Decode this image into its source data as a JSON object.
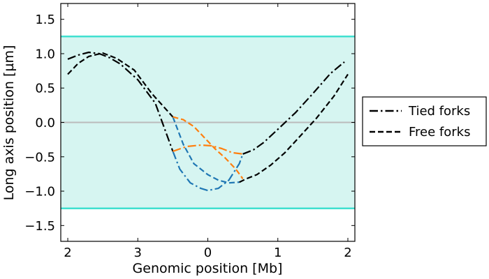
{
  "chart_data": {
    "type": "line",
    "title": "",
    "xlabel": "Genomic position [Mb]",
    "ylabel": "Long axis position [µm]",
    "xlim": [
      -0.1,
      4.1
    ],
    "ylim": [
      -1.73,
      1.73
    ],
    "x_ticks": [
      {
        "pos": 0,
        "label": "2"
      },
      {
        "pos": 1,
        "label": "3"
      },
      {
        "pos": 2,
        "label": "0"
      },
      {
        "pos": 3,
        "label": "1"
      },
      {
        "pos": 4,
        "label": "2"
      }
    ],
    "y_ticks": [
      {
        "value": 1.5,
        "label": "1.5"
      },
      {
        "value": 1.0,
        "label": "1.0"
      },
      {
        "value": 0.5,
        "label": "0.5"
      },
      {
        "value": 0.0,
        "label": "0.0"
      },
      {
        "value": -0.5,
        "label": "−0.5"
      },
      {
        "value": -1.0,
        "label": "−1.0"
      },
      {
        "value": -1.5,
        "label": "−1.5"
      }
    ],
    "band": {
      "ymin": -1.25,
      "ymax": 1.25,
      "fill": "#d6f5f1",
      "edge": "#40e0d0"
    },
    "hline": {
      "y": 0.0,
      "color": "#bbbbbb"
    },
    "legend_position": "outside-right",
    "series": [
      {
        "name": "Tied forks",
        "style": "dashdot",
        "color": "#000000",
        "x": [
          0.0,
          0.15,
          0.3,
          0.45,
          0.6,
          0.75,
          1.0,
          1.25,
          1.5
        ],
        "y": [
          0.92,
          0.98,
          1.02,
          1.0,
          0.94,
          0.85,
          0.62,
          0.28,
          -0.42
        ]
      },
      {
        "style": "dashdot",
        "color": "#1f77b4",
        "x": [
          1.5,
          1.6,
          1.75,
          1.9,
          2.0,
          2.15,
          2.3,
          2.45,
          2.5
        ],
        "y": [
          -0.42,
          -0.68,
          -0.88,
          -0.96,
          -0.99,
          -0.96,
          -0.84,
          -0.6,
          -0.46
        ]
      },
      {
        "style": "dashdot",
        "color": "#ff7f0e",
        "x": [
          1.5,
          1.7,
          1.9,
          2.05,
          2.2,
          2.35,
          2.5
        ],
        "y": [
          -0.42,
          -0.35,
          -0.33,
          -0.34,
          -0.38,
          -0.44,
          -0.46
        ]
      },
      {
        "style": "dashdot",
        "color": "#000000",
        "x": [
          2.5,
          2.65,
          2.8,
          3.0,
          3.25,
          3.5,
          3.75,
          3.95
        ],
        "y": [
          -0.46,
          -0.4,
          -0.29,
          -0.1,
          0.14,
          0.42,
          0.71,
          0.88
        ]
      },
      {
        "name": "Free forks",
        "style": "dashed",
        "color": "#000000",
        "x": [
          0.0,
          0.15,
          0.3,
          0.5,
          0.7,
          0.95,
          1.2,
          1.5
        ],
        "y": [
          0.7,
          0.86,
          0.96,
          1.01,
          0.93,
          0.76,
          0.42,
          0.08
        ]
      },
      {
        "style": "dashed",
        "color": "#1f77b4",
        "x": [
          1.5,
          1.65,
          1.8,
          2.0,
          2.15,
          2.3,
          2.45
        ],
        "y": [
          0.08,
          -0.32,
          -0.6,
          -0.76,
          -0.84,
          -0.88,
          -0.87
        ]
      },
      {
        "style": "dashed",
        "color": "#ff7f0e",
        "x": [
          1.5,
          1.65,
          1.8,
          1.95,
          2.1,
          2.25,
          2.4,
          2.5
        ],
        "y": [
          0.08,
          0.04,
          -0.06,
          -0.22,
          -0.38,
          -0.52,
          -0.68,
          -0.82
        ]
      },
      {
        "style": "dashed",
        "color": "#000000",
        "x": [
          2.45,
          2.55,
          2.7,
          2.9,
          3.1,
          3.3,
          3.55,
          3.8,
          4.0
        ],
        "y": [
          -0.87,
          -0.82,
          -0.76,
          -0.62,
          -0.44,
          -0.22,
          0.06,
          0.38,
          0.7
        ]
      }
    ]
  }
}
